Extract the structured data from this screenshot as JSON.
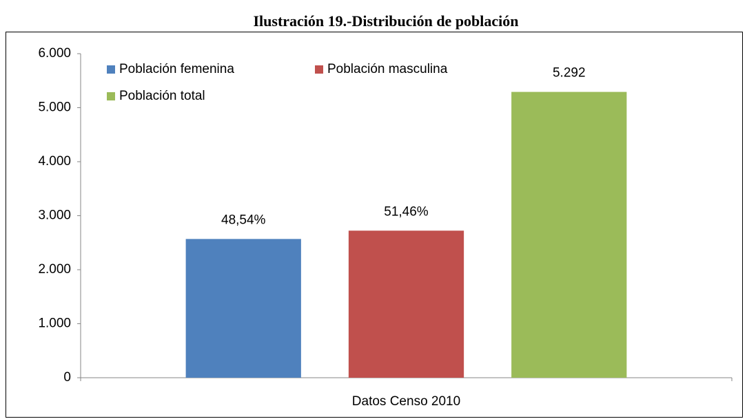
{
  "chart_data": {
    "type": "bar",
    "title": "Ilustración 19.-Distribución de población",
    "categories": [
      "Datos Censo 2010"
    ],
    "series": [
      {
        "name": "Población femenina",
        "color": "#4f81bd",
        "values": [
          2569
        ],
        "data_labels": [
          {
            "value": 48.54,
            "label": "48,54%"
          }
        ]
      },
      {
        "name": "Población masculina",
        "color": "#c0504d",
        "values": [
          2723
        ],
        "data_labels": [
          {
            "value": 51.46,
            "label": "51,46%"
          }
        ]
      },
      {
        "name": "Población total",
        "color": "#9bbb59",
        "values": [
          5292
        ],
        "value_labels": [
          "5.292"
        ]
      }
    ],
    "ylim": [
      0,
      6000
    ],
    "yticks": [
      0,
      {
        "value": 1000,
        "label": "1.000"
      },
      {
        "value": 2000,
        "label": "2.000"
      },
      {
        "value": 3000,
        "label": "3.000"
      },
      {
        "value": 4000,
        "label": "4.000"
      },
      {
        "value": 5000,
        "label": "5.000"
      },
      {
        "value": 6000,
        "label": "6.000"
      }
    ],
    "grid": false,
    "legend": "top-left"
  }
}
